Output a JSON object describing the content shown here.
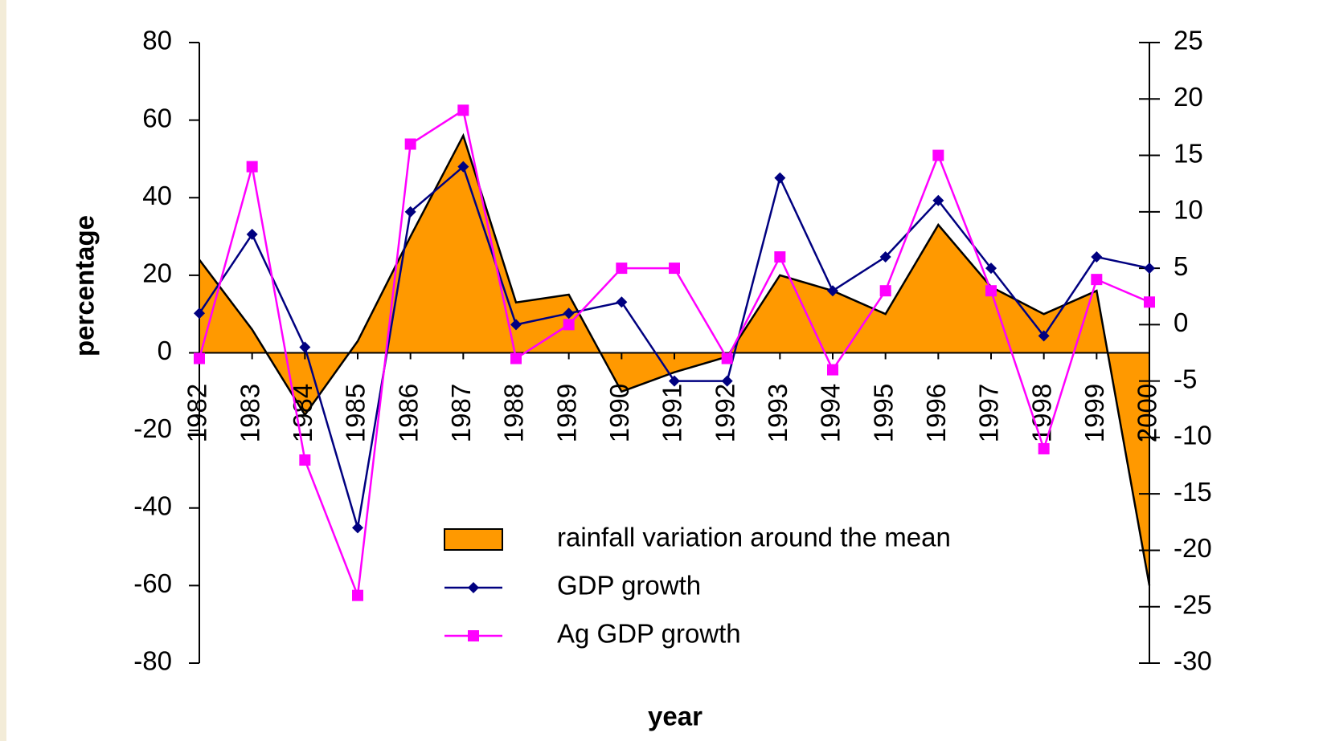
{
  "chart_data": {
    "type": "line",
    "xlabel": "year",
    "ylabel": "percentage",
    "categories": [
      "1982",
      "1983",
      "1984",
      "1985",
      "1986",
      "1987",
      "1988",
      "1989",
      "1990",
      "1991",
      "1992",
      "1993",
      "1994",
      "1995",
      "1996",
      "1997",
      "1998",
      "1999",
      "2000"
    ],
    "series": [
      {
        "name": "rainfall variation around the mean",
        "type": "area",
        "color": "#ff9900",
        "axis": "y",
        "values": [
          24,
          6,
          -16,
          3,
          30,
          56,
          13,
          15,
          -10,
          -5,
          -1,
          20,
          16,
          10,
          33,
          17,
          10,
          16,
          -60
        ]
      },
      {
        "name": "GDP growth",
        "type": "line",
        "color": "#000080",
        "marker": "diamond",
        "axis": "y2",
        "values": [
          1,
          8,
          -2,
          -18,
          10,
          14,
          0,
          1,
          2,
          -5,
          -5,
          13,
          3,
          6,
          11,
          5,
          -1,
          6,
          5
        ]
      },
      {
        "name": "Ag GDP growth",
        "type": "line",
        "color": "#ff00ff",
        "marker": "square",
        "axis": "y2",
        "values": [
          -3,
          14,
          -12,
          -24,
          16,
          19,
          -3,
          0,
          5,
          5,
          -3,
          6,
          -4,
          3,
          15,
          3,
          -11,
          4,
          2
        ]
      }
    ],
    "ylim": [
      -80,
      80
    ],
    "yticks": [
      -80,
      -60,
      -40,
      -20,
      0,
      20,
      40,
      60,
      80
    ],
    "y2lim": [
      -30,
      25
    ],
    "y2ticks": [
      -30,
      -25,
      -20,
      -15,
      -10,
      -5,
      0,
      5,
      10,
      15,
      20,
      25
    ],
    "grid": false,
    "legend": "lower center"
  }
}
